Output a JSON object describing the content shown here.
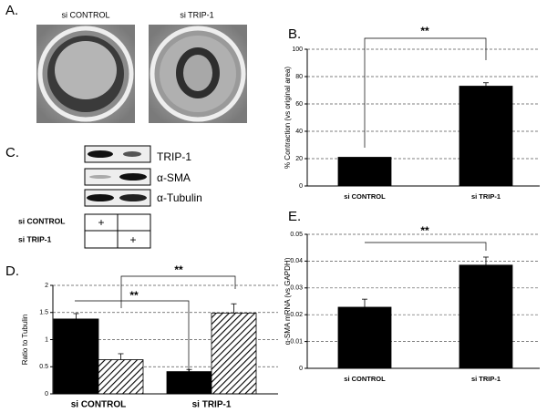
{
  "panel_labels": [
    "A.",
    "B.",
    "C.",
    "D.",
    "E."
  ],
  "photos": {
    "labels": [
      "si CONTROL",
      "si TRIP-1"
    ]
  },
  "blot": {
    "bands": [
      "TRIP-1",
      "α-SMA",
      "α-Tubulin"
    ],
    "conditions": [
      "si CONTROL",
      "si TRIP-1"
    ],
    "marks": [
      "+",
      "+"
    ]
  },
  "chart_data": [
    {
      "type": "bar",
      "ylabel": "% Contraction (vs original area)",
      "categories": [
        "si CONTROL",
        "si TRIP-1"
      ],
      "values": [
        21,
        73
      ],
      "errors": [
        null,
        2.5
      ],
      "color": "#000000",
      "ylim": [
        0,
        100
      ],
      "yticks": [
        0,
        20,
        40,
        60,
        80,
        100
      ],
      "grid": true,
      "annotations": [
        "**"
      ]
    },
    {
      "type": "bar",
      "ylabel": "Ratio to Tubulin",
      "categories": [
        "si CONTROL",
        "si TRIP-1"
      ],
      "series": [
        {
          "color": "#000000",
          "values": [
            1.38,
            0.41
          ],
          "errors": [
            0.1,
            0.04
          ]
        },
        {
          "color": "#000000",
          "pattern": "hatch",
          "values": [
            0.63,
            1.49
          ],
          "errors": [
            0.11,
            0.17
          ]
        }
      ],
      "ylim": [
        0,
        2
      ],
      "yticks": [
        0,
        0.5,
        1,
        1.5,
        2
      ],
      "grid": true,
      "annotations": [
        "**",
        "**"
      ]
    },
    {
      "type": "bar",
      "ylabel": "α-SMA mRNA (vs GAPDH)",
      "categories": [
        "si CONTROL",
        "si TRIP-1"
      ],
      "values": [
        0.0228,
        0.0385
      ],
      "errors": [
        0.003,
        0.003
      ],
      "color": "#000000",
      "ylim": [
        0,
        0.05
      ],
      "yticks": [
        0,
        0.01,
        0.02,
        0.03,
        0.04,
        0.05
      ],
      "grid": true,
      "annotations": [
        "**"
      ]
    }
  ]
}
